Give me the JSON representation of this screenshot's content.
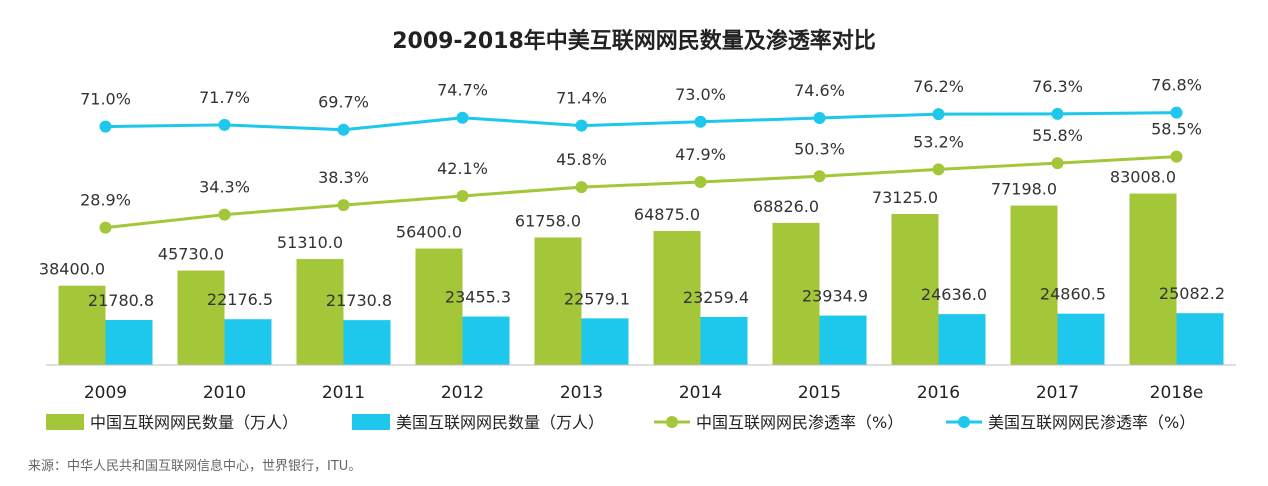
{
  "chart_data": {
    "type": "bar",
    "title": "2009-2018年中美互联网网民数量及渗透率对比",
    "categories": [
      "2009",
      "2010",
      "2011",
      "2012",
      "2013",
      "2014",
      "2015",
      "2016",
      "2017",
      "2018e"
    ],
    "series": [
      {
        "name": "中国互联网网民数量（万人）",
        "kind": "bar",
        "color": "#a4c639",
        "values": [
          38400.0,
          45730.0,
          51310.0,
          56400.0,
          61758.0,
          64875.0,
          68826.0,
          73125.0,
          77198.0,
          83008.0
        ],
        "labels": [
          "38400.0",
          "45730.0",
          "51310.0",
          "56400.0",
          "61758.0",
          "64875.0",
          "68826.0",
          "73125.0",
          "77198.0",
          "83008.0"
        ]
      },
      {
        "name": "美国互联网网民数量（万人）",
        "kind": "bar",
        "color": "#1ec8ec",
        "values": [
          21780.8,
          22176.5,
          21730.8,
          23455.3,
          22579.1,
          23259.4,
          23934.9,
          24636.0,
          24860.5,
          25082.2
        ],
        "labels": [
          "21780.8",
          "22176.5",
          "21730.8",
          "23455.3",
          "22579.1",
          "23259.4",
          "23934.9",
          "24636.0",
          "24860.5",
          "25082.2"
        ]
      },
      {
        "name": "中国互联网网民渗透率（%）",
        "kind": "line",
        "color": "#a4c639",
        "values": [
          28.9,
          34.3,
          38.3,
          42.1,
          45.8,
          47.9,
          50.3,
          53.2,
          55.8,
          58.5
        ],
        "labels": [
          "28.9%",
          "34.3%",
          "38.3%",
          "42.1%",
          "45.8%",
          "47.9%",
          "50.3%",
          "53.2%",
          "55.8%",
          "58.5%"
        ]
      },
      {
        "name": "美国互联网网民渗透率（%）",
        "kind": "line",
        "color": "#1ec8ec",
        "values": [
          71.0,
          71.7,
          69.7,
          74.7,
          71.4,
          73.0,
          74.6,
          76.2,
          76.3,
          76.8
        ],
        "labels": [
          "71.0%",
          "71.7%",
          "69.7%",
          "74.7%",
          "71.4%",
          "73.0%",
          "74.6%",
          "76.2%",
          "76.3%",
          "76.8%"
        ]
      }
    ],
    "xlabel": "",
    "ylabel": "",
    "bar_ylim": [
      0,
      100000
    ],
    "line_ylim": [
      0,
      100
    ],
    "grid": false,
    "legend_position": "bottom"
  },
  "source": "来源：中华人民共和国互联网信息中心，世界银行，ITU。"
}
